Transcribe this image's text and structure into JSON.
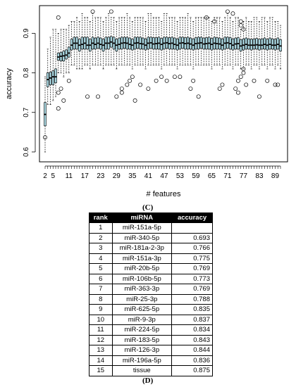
{
  "chart_data": {
    "type": "box",
    "xlabel": "# features",
    "ylabel": "accuracy",
    "ylim": [
      0.575,
      0.97
    ],
    "y_ticks": [
      0.6,
      0.7,
      0.8,
      0.9
    ],
    "x_tick_labels": [
      "2",
      "5",
      "11",
      "17",
      "23",
      "29",
      "35",
      "41",
      "47",
      "53",
      "59",
      "65",
      "71",
      "77",
      "83",
      "89"
    ],
    "box_fill": "#a9d6e0",
    "boxes": [
      {
        "q1": 0.666,
        "median": 0.695,
        "q3": 0.725,
        "whisker_low": 0.6,
        "whisker_high": 0.79,
        "outliers": [
          0.637
        ]
      },
      {
        "q1": 0.765,
        "median": 0.783,
        "q3": 0.8,
        "whisker_low": 0.72,
        "whisker_high": 0.86
      },
      {
        "q1": 0.77,
        "median": 0.787,
        "q3": 0.802,
        "whisker_low": 0.72,
        "whisker_high": 0.89
      },
      {
        "q1": 0.77,
        "median": 0.79,
        "q3": 0.805,
        "whisker_low": 0.73,
        "whisker_high": 0.91
      },
      {
        "q1": 0.775,
        "median": 0.79,
        "q3": 0.81,
        "whisker_low": 0.74,
        "whisker_high": 0.91
      },
      {
        "q1": 0.832,
        "median": 0.84,
        "q3": 0.85,
        "whisker_low": 0.8,
        "whisker_high": 0.9,
        "outliers": [
          0.94,
          0.75,
          0.71
        ]
      },
      {
        "q1": 0.83,
        "median": 0.842,
        "q3": 0.852,
        "whisker_low": 0.8,
        "whisker_high": 0.91,
        "outliers": [
          0.76
        ]
      },
      {
        "q1": 0.83,
        "median": 0.843,
        "q3": 0.855,
        "whisker_low": 0.79,
        "whisker_high": 0.91,
        "outliers": [
          0.73
        ]
      },
      {
        "q1": 0.835,
        "median": 0.845,
        "q3": 0.858,
        "whisker_low": 0.8,
        "whisker_high": 0.91
      },
      {
        "q1": 0.84,
        "median": 0.85,
        "q3": 0.865,
        "whisker_low": 0.8,
        "whisker_high": 0.92,
        "outliers": [
          0.78
        ]
      },
      {
        "q1": 0.858,
        "median": 0.87,
        "q3": 0.885,
        "whisker_low": 0.82,
        "whisker_high": 0.93
      },
      {
        "q1": 0.86,
        "median": 0.875,
        "q3": 0.89,
        "whisker_low": 0.82,
        "whisker_high": 0.93
      },
      {
        "q1": 0.86,
        "median": 0.875,
        "q3": 0.89,
        "whisker_low": 0.81,
        "whisker_high": 0.94
      },
      {
        "q1": 0.855,
        "median": 0.87,
        "q3": 0.885,
        "whisker_low": 0.81,
        "whisker_high": 0.93
      },
      {
        "q1": 0.86,
        "median": 0.872,
        "q3": 0.89,
        "whisker_low": 0.81,
        "whisker_high": 0.95
      },
      {
        "q1": 0.86,
        "median": 0.875,
        "q3": 0.89,
        "whisker_low": 0.82,
        "whisker_high": 0.94
      },
      {
        "q1": 0.86,
        "median": 0.87,
        "q3": 0.89,
        "whisker_low": 0.82,
        "whisker_high": 0.94,
        "outliers": [
          0.74
        ]
      },
      {
        "q1": 0.855,
        "median": 0.87,
        "q3": 0.885,
        "whisker_low": 0.81,
        "whisker_high": 0.93
      },
      {
        "q1": 0.86,
        "median": 0.875,
        "q3": 0.89,
        "whisker_low": 0.82,
        "whisker_high": 0.95,
        "outliers": [
          0.955
        ]
      },
      {
        "q1": 0.86,
        "median": 0.872,
        "q3": 0.888,
        "whisker_low": 0.82,
        "whisker_high": 0.94
      },
      {
        "q1": 0.862,
        "median": 0.875,
        "q3": 0.89,
        "whisker_low": 0.82,
        "whisker_high": 0.94,
        "outliers": [
          0.74
        ]
      },
      {
        "q1": 0.86,
        "median": 0.872,
        "q3": 0.888,
        "whisker_low": 0.82,
        "whisker_high": 0.94
      },
      {
        "q1": 0.855,
        "median": 0.87,
        "q3": 0.885,
        "whisker_low": 0.81,
        "whisker_high": 0.93
      },
      {
        "q1": 0.86,
        "median": 0.875,
        "q3": 0.89,
        "whisker_low": 0.82,
        "whisker_high": 0.94
      },
      {
        "q1": 0.86,
        "median": 0.875,
        "q3": 0.89,
        "whisker_low": 0.82,
        "whisker_high": 0.95
      },
      {
        "q1": 0.865,
        "median": 0.878,
        "q3": 0.892,
        "whisker_low": 0.82,
        "whisker_high": 0.94,
        "outliers": [
          0.955
        ]
      },
      {
        "q1": 0.86,
        "median": 0.875,
        "q3": 0.89,
        "whisker_low": 0.82,
        "whisker_high": 0.94
      },
      {
        "q1": 0.855,
        "median": 0.87,
        "q3": 0.885,
        "whisker_low": 0.81,
        "whisker_high": 0.93,
        "outliers": [
          0.74
        ]
      },
      {
        "q1": 0.86,
        "median": 0.872,
        "q3": 0.888,
        "whisker_low": 0.82,
        "whisker_high": 0.94
      },
      {
        "q1": 0.86,
        "median": 0.875,
        "q3": 0.89,
        "whisker_low": 0.82,
        "whisker_high": 0.94,
        "outliers": [
          0.76,
          0.75
        ]
      },
      {
        "q1": 0.862,
        "median": 0.876,
        "q3": 0.89,
        "whisker_low": 0.82,
        "whisker_high": 0.94
      },
      {
        "q1": 0.86,
        "median": 0.875,
        "q3": 0.89,
        "whisker_low": 0.82,
        "whisker_high": 0.95,
        "outliers": [
          0.77
        ]
      },
      {
        "q1": 0.86,
        "median": 0.872,
        "q3": 0.888,
        "whisker_low": 0.82,
        "whisker_high": 0.94,
        "outliers": [
          0.78
        ]
      },
      {
        "q1": 0.858,
        "median": 0.87,
        "q3": 0.885,
        "whisker_low": 0.81,
        "whisker_high": 0.93,
        "outliers": [
          0.79
        ]
      },
      {
        "q1": 0.86,
        "median": 0.875,
        "q3": 0.89,
        "whisker_low": 0.82,
        "whisker_high": 0.94,
        "outliers": [
          0.73
        ]
      },
      {
        "q1": 0.862,
        "median": 0.876,
        "q3": 0.89,
        "whisker_low": 0.82,
        "whisker_high": 0.94
      },
      {
        "q1": 0.86,
        "median": 0.874,
        "q3": 0.89,
        "whisker_low": 0.82,
        "whisker_high": 0.94,
        "outliers": [
          0.77
        ]
      },
      {
        "q1": 0.86,
        "median": 0.873,
        "q3": 0.888,
        "whisker_low": 0.82,
        "whisker_high": 0.94
      },
      {
        "q1": 0.858,
        "median": 0.87,
        "q3": 0.886,
        "whisker_low": 0.81,
        "whisker_high": 0.93
      },
      {
        "q1": 0.86,
        "median": 0.875,
        "q3": 0.89,
        "whisker_low": 0.82,
        "whisker_high": 0.95,
        "outliers": [
          0.76
        ]
      },
      {
        "q1": 0.862,
        "median": 0.876,
        "q3": 0.89,
        "whisker_low": 0.82,
        "whisker_high": 0.95
      },
      {
        "q1": 0.86,
        "median": 0.873,
        "q3": 0.889,
        "whisker_low": 0.82,
        "whisker_high": 0.94
      },
      {
        "q1": 0.86,
        "median": 0.874,
        "q3": 0.889,
        "whisker_low": 0.82,
        "whisker_high": 0.94,
        "outliers": [
          0.78
        ]
      },
      {
        "q1": 0.86,
        "median": 0.875,
        "q3": 0.89,
        "whisker_low": 0.82,
        "whisker_high": 0.94
      },
      {
        "q1": 0.858,
        "median": 0.872,
        "q3": 0.887,
        "whisker_low": 0.81,
        "whisker_high": 0.93,
        "outliers": [
          0.79
        ]
      },
      {
        "q1": 0.86,
        "median": 0.875,
        "q3": 0.89,
        "whisker_low": 0.82,
        "whisker_high": 0.95
      },
      {
        "q1": 0.862,
        "median": 0.876,
        "q3": 0.89,
        "whisker_low": 0.82,
        "whisker_high": 0.95,
        "outliers": [
          0.78
        ]
      },
      {
        "q1": 0.86,
        "median": 0.874,
        "q3": 0.889,
        "whisker_low": 0.82,
        "whisker_high": 0.94
      },
      {
        "q1": 0.86,
        "median": 0.875,
        "q3": 0.89,
        "whisker_low": 0.82,
        "whisker_high": 0.94
      },
      {
        "q1": 0.86,
        "median": 0.872,
        "q3": 0.888,
        "whisker_low": 0.82,
        "whisker_high": 0.94,
        "outliers": [
          0.79
        ]
      },
      {
        "q1": 0.858,
        "median": 0.87,
        "q3": 0.886,
        "whisker_low": 0.81,
        "whisker_high": 0.93
      },
      {
        "q1": 0.86,
        "median": 0.875,
        "q3": 0.89,
        "whisker_low": 0.82,
        "whisker_high": 0.94,
        "outliers": [
          0.79
        ]
      },
      {
        "q1": 0.862,
        "median": 0.876,
        "q3": 0.89,
        "whisker_low": 0.82,
        "whisker_high": 0.94
      },
      {
        "q1": 0.86,
        "median": 0.874,
        "q3": 0.889,
        "whisker_low": 0.82,
        "whisker_high": 0.94
      },
      {
        "q1": 0.86,
        "median": 0.875,
        "q3": 0.89,
        "whisker_low": 0.82,
        "whisker_high": 0.95
      },
      {
        "q1": 0.86,
        "median": 0.873,
        "q3": 0.888,
        "whisker_low": 0.82,
        "whisker_high": 0.94,
        "outliers": [
          0.76
        ]
      },
      {
        "q1": 0.858,
        "median": 0.87,
        "q3": 0.886,
        "whisker_low": 0.81,
        "whisker_high": 0.93,
        "outliers": [
          0.78
        ]
      },
      {
        "q1": 0.86,
        "median": 0.874,
        "q3": 0.889,
        "whisker_low": 0.82,
        "whisker_high": 0.94
      },
      {
        "q1": 0.86,
        "median": 0.875,
        "q3": 0.89,
        "whisker_low": 0.82,
        "whisker_high": 0.94,
        "outliers": [
          0.74
        ]
      },
      {
        "q1": 0.862,
        "median": 0.876,
        "q3": 0.89,
        "whisker_low": 0.82,
        "whisker_high": 0.94
      },
      {
        "q1": 0.86,
        "median": 0.873,
        "q3": 0.888,
        "whisker_low": 0.82,
        "whisker_high": 0.94
      },
      {
        "q1": 0.86,
        "median": 0.874,
        "q3": 0.889,
        "whisker_low": 0.82,
        "whisker_high": 0.94,
        "outliers": [
          0.94
        ]
      },
      {
        "q1": 0.86,
        "median": 0.875,
        "q3": 0.89,
        "whisker_low": 0.82,
        "whisker_high": 0.94
      },
      {
        "q1": 0.858,
        "median": 0.872,
        "q3": 0.887,
        "whisker_low": 0.81,
        "whisker_high": 0.93
      },
      {
        "q1": 0.86,
        "median": 0.875,
        "q3": 0.89,
        "whisker_low": 0.82,
        "whisker_high": 0.94,
        "outliers": [
          0.93
        ]
      },
      {
        "q1": 0.86,
        "median": 0.874,
        "q3": 0.889,
        "whisker_low": 0.82,
        "whisker_high": 0.94
      },
      {
        "q1": 0.86,
        "median": 0.873,
        "q3": 0.888,
        "whisker_low": 0.82,
        "whisker_high": 0.94,
        "outliers": [
          0.76
        ]
      },
      {
        "q1": 0.858,
        "median": 0.87,
        "q3": 0.886,
        "whisker_low": 0.81,
        "whisker_high": 0.93,
        "outliers": [
          0.77
        ]
      },
      {
        "q1": 0.86,
        "median": 0.875,
        "q3": 0.89,
        "whisker_low": 0.82,
        "whisker_high": 0.94
      },
      {
        "q1": 0.862,
        "median": 0.876,
        "q3": 0.89,
        "whisker_low": 0.82,
        "whisker_high": 0.95,
        "outliers": [
          0.955
        ]
      },
      {
        "q1": 0.86,
        "median": 0.874,
        "q3": 0.889,
        "whisker_low": 0.82,
        "whisker_high": 0.94
      },
      {
        "q1": 0.858,
        "median": 0.87,
        "q3": 0.886,
        "whisker_low": 0.81,
        "whisker_high": 0.93,
        "outliers": [
          0.95
        ]
      },
      {
        "q1": 0.86,
        "median": 0.873,
        "q3": 0.888,
        "whisker_low": 0.82,
        "whisker_high": 0.94,
        "outliers": [
          0.76
        ]
      },
      {
        "q1": 0.86,
        "median": 0.874,
        "q3": 0.889,
        "whisker_low": 0.82,
        "whisker_high": 0.94,
        "outliers": [
          0.75,
          0.78
        ]
      },
      {
        "q1": 0.855,
        "median": 0.868,
        "q3": 0.884,
        "whisker_low": 0.81,
        "whisker_high": 0.91,
        "outliers": [
          0.93,
          0.92,
          0.79
        ]
      },
      {
        "q1": 0.858,
        "median": 0.87,
        "q3": 0.886,
        "whisker_low": 0.81,
        "whisker_high": 0.93,
        "outliers": [
          0.91,
          0.81,
          0.8
        ]
      },
      {
        "q1": 0.86,
        "median": 0.872,
        "q3": 0.888,
        "whisker_low": 0.82,
        "whisker_high": 0.94,
        "outliers": [
          0.77
        ]
      },
      {
        "q1": 0.86,
        "median": 0.87,
        "q3": 0.886,
        "whisker_low": 0.82,
        "whisker_high": 0.93
      },
      {
        "q1": 0.858,
        "median": 0.87,
        "q3": 0.885,
        "whisker_low": 0.81,
        "whisker_high": 0.93
      },
      {
        "q1": 0.86,
        "median": 0.87,
        "q3": 0.886,
        "whisker_low": 0.82,
        "whisker_high": 0.94,
        "outliers": [
          0.78
        ]
      },
      {
        "q1": 0.86,
        "median": 0.871,
        "q3": 0.887,
        "whisker_low": 0.82,
        "whisker_high": 0.94
      },
      {
        "q1": 0.858,
        "median": 0.87,
        "q3": 0.885,
        "whisker_low": 0.81,
        "whisker_high": 0.93,
        "outliers": [
          0.74
        ]
      },
      {
        "q1": 0.86,
        "median": 0.87,
        "q3": 0.886,
        "whisker_low": 0.82,
        "whisker_high": 0.94
      },
      {
        "q1": 0.86,
        "median": 0.872,
        "q3": 0.888,
        "whisker_low": 0.82,
        "whisker_high": 0.94
      },
      {
        "q1": 0.858,
        "median": 0.87,
        "q3": 0.885,
        "whisker_low": 0.81,
        "whisker_high": 0.93,
        "outliers": [
          0.78
        ]
      },
      {
        "q1": 0.86,
        "median": 0.872,
        "q3": 0.888,
        "whisker_low": 0.82,
        "whisker_high": 0.94
      },
      {
        "q1": 0.86,
        "median": 0.87,
        "q3": 0.886,
        "whisker_low": 0.82,
        "whisker_high": 0.94
      },
      {
        "q1": 0.858,
        "median": 0.87,
        "q3": 0.885,
        "whisker_low": 0.81,
        "whisker_high": 0.93,
        "outliers": [
          0.77
        ]
      },
      {
        "q1": 0.86,
        "median": 0.872,
        "q3": 0.888,
        "whisker_low": 0.82,
        "whisker_high": 0.93,
        "outliers": [
          0.77
        ]
      },
      {
        "q1": 0.855,
        "median": 0.868,
        "q3": 0.884,
        "whisker_low": 0.81,
        "whisker_high": 0.92
      }
    ]
  },
  "panel_labels": {
    "c": "(C)",
    "d": "(D)"
  },
  "table": {
    "headers": [
      "rank",
      "miRNA",
      "accuracy"
    ],
    "rows": [
      [
        "1",
        "miR-151a-5p",
        ""
      ],
      [
        "2",
        "miR-340-5p",
        "0.693"
      ],
      [
        "3",
        "miR-181a-2-3p",
        "0.766"
      ],
      [
        "4",
        "miR-151a-3p",
        "0.775"
      ],
      [
        "5",
        "miR-20b-5p",
        "0.769"
      ],
      [
        "6",
        "miR-106b-5p",
        "0.773"
      ],
      [
        "7",
        "miR-363-3p",
        "0.769"
      ],
      [
        "8",
        "miR-25-3p",
        "0.788"
      ],
      [
        "9",
        "miR-625-5p",
        "0.835"
      ],
      [
        "10",
        "miR-9-3p",
        "0.837"
      ],
      [
        "11",
        "miR-224-5p",
        "0.834"
      ],
      [
        "12",
        "miR-183-5p",
        "0.843"
      ],
      [
        "13",
        "miR-126-3p",
        "0.844"
      ],
      [
        "14",
        "miR-196a-5p",
        "0.836"
      ],
      [
        "15",
        "tissue",
        "0.875"
      ]
    ]
  }
}
